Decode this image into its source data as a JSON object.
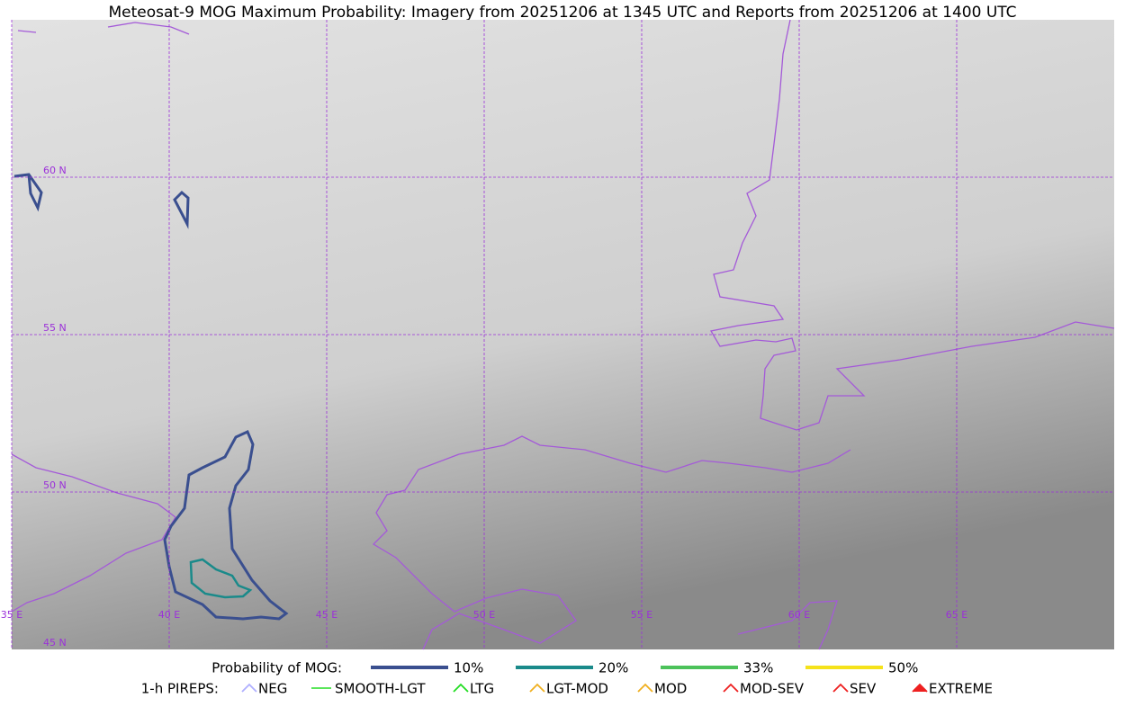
{
  "title": "Meteosat-9 MOG Maximum Probability: Imagery from 20251206 at 1345 UTC and Reports from 20251206 at 1400 UTC",
  "grid_labels": {
    "lat": [
      "60 N",
      "55 N",
      "50 N",
      "45 N"
    ],
    "lon": [
      "35 E",
      "40 E",
      "45 E",
      "50 E",
      "55 E",
      "60 E",
      "65 E"
    ]
  },
  "legend": {
    "probability": {
      "label": "Probability of MOG:",
      "items": [
        "10%",
        "20%",
        "33%",
        "50%"
      ]
    },
    "pireps": {
      "label": "1-h PIREPS:",
      "items": [
        "NEG",
        "SMOOTH-LGT",
        "LTG",
        "LGT-MOD",
        "MOD",
        "MOD-SEV",
        "SEV",
        "EXTREME"
      ]
    }
  }
}
